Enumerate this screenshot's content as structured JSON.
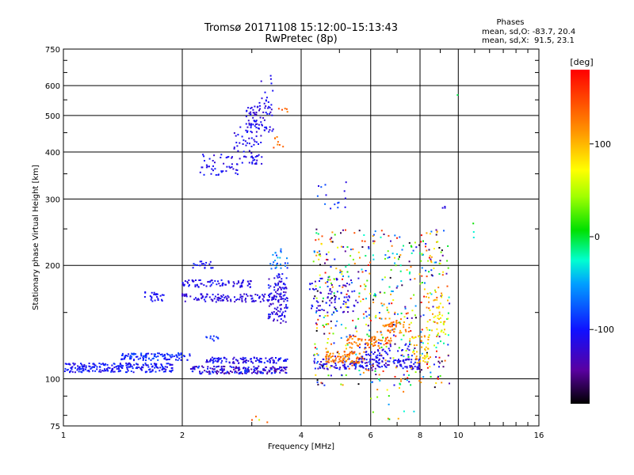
{
  "chart_data": {
    "type": "scatter",
    "title": "Tromsø 20171108 15:12:00–15:13:43",
    "subtitle": "RwPretec (8p)",
    "xlabel": "Frequency [MHz]",
    "ylabel": "Stationary phase Virtual Height [km]",
    "x_scale": "log",
    "y_scale": "log",
    "xlim": [
      1,
      16
    ],
    "ylim": [
      75,
      750
    ],
    "x_ticks": [
      1,
      2,
      4,
      6,
      8,
      10,
      16
    ],
    "x_tick_labels": [
      "1",
      "2",
      "4",
      "6",
      "8",
      "10",
      "16"
    ],
    "y_ticks": [
      75,
      100,
      200,
      300,
      400,
      500,
      600,
      750
    ],
    "y_tick_labels": [
      "75",
      "100",
      "200",
      "300",
      "400",
      "500",
      "600",
      "750"
    ],
    "grid": true,
    "stats": {
      "heading": "Phases",
      "line_o": "mean, sd,O: -83.7, 20.4",
      "line_x": "mean, sd,X:  91.5, 23.1"
    },
    "colorbar": {
      "label": "[deg]",
      "range": [
        -180,
        180
      ],
      "ticks": [
        100,
        0,
        -100
      ],
      "tick_labels": [
        "100",
        "0",
        "-100"
      ]
    },
    "clusters": [
      {
        "xr": [
          1.0,
          1.9
        ],
        "yr": [
          104,
          110
        ],
        "c": [
          -120,
          -85
        ],
        "n": 230
      },
      {
        "xr": [
          1.4,
          2.1
        ],
        "yr": [
          112,
          117
        ],
        "c": [
          -110,
          -75
        ],
        "n": 110
      },
      {
        "xr": [
          1.6,
          1.8
        ],
        "yr": [
          160,
          170
        ],
        "c": [
          -110,
          -100
        ],
        "n": 25
      },
      {
        "xr": [
          2.1,
          3.7
        ],
        "yr": [
          103,
          108
        ],
        "c": [
          -150,
          -80
        ],
        "n": 190
      },
      {
        "xr": [
          2.3,
          3.7
        ],
        "yr": [
          110,
          114
        ],
        "c": [
          -125,
          -85
        ],
        "n": 110
      },
      {
        "xr": [
          2.0,
          3.7
        ],
        "yr": [
          160,
          168
        ],
        "c": [
          -130,
          -100
        ],
        "n": 130
      },
      {
        "xr": [
          2.0,
          3.0
        ],
        "yr": [
          175,
          183
        ],
        "c": [
          -125,
          -95
        ],
        "n": 80
      },
      {
        "xr": [
          2.1,
          2.4
        ],
        "yr": [
          195,
          205
        ],
        "c": [
          -110,
          -90
        ],
        "n": 18
      },
      {
        "xr": [
          2.3,
          2.5
        ],
        "yr": [
          126,
          130
        ],
        "c": [
          -95,
          -80
        ],
        "n": 10
      },
      {
        "xr": [
          2.2,
          2.8
        ],
        "yr": [
          345,
          395
        ],
        "c": [
          -125,
          -95
        ],
        "n": 45
      },
      {
        "xr": [
          2.7,
          3.2
        ],
        "yr": [
          370,
          470
        ],
        "c": [
          -125,
          -95
        ],
        "n": 60
      },
      {
        "xr": [
          2.9,
          3.4
        ],
        "yr": [
          450,
          540
        ],
        "c": [
          -130,
          -95
        ],
        "n": 80
      },
      {
        "xr": [
          3.1,
          3.4
        ],
        "yr": [
          540,
          650
        ],
        "c": [
          -120,
          -100
        ],
        "n": 12
      },
      {
        "xr": [
          3.3,
          3.7
        ],
        "yr": [
          140,
          190
        ],
        "c": [
          -135,
          -90
        ],
        "n": 100
      },
      {
        "xr": [
          3.3,
          3.7
        ],
        "yr": [
          195,
          225
        ],
        "c": [
          -95,
          -40
        ],
        "n": 25
      },
      {
        "xr": [
          3.4,
          3.6
        ],
        "yr": [
          410,
          440
        ],
        "c": [
          120,
          150
        ],
        "n": 8
      },
      {
        "xr": [
          3.5,
          3.7
        ],
        "yr": [
          490,
          540
        ],
        "c": [
          120,
          150
        ],
        "n": 5
      },
      {
        "xr": [
          4.3,
          8.0
        ],
        "yr": [
          106,
          113
        ],
        "c": [
          -140,
          -85
        ],
        "n": 160
      },
      {
        "xr": [
          4.3,
          9.5
        ],
        "yr": [
          95,
          250
        ],
        "c": [
          -180,
          180
        ],
        "n": 550
      },
      {
        "xr": [
          4.6,
          5.8
        ],
        "yr": [
          110,
          118
        ],
        "c": [
          110,
          150
        ],
        "n": 80
      },
      {
        "xr": [
          5.2,
          6.8
        ],
        "yr": [
          120,
          130
        ],
        "c": [
          110,
          150
        ],
        "n": 70
      },
      {
        "xr": [
          6.3,
          7.6
        ],
        "yr": [
          132,
          145
        ],
        "c": [
          100,
          150
        ],
        "n": 50
      },
      {
        "xr": [
          7.5,
          8.5
        ],
        "yr": [
          110,
          130
        ],
        "c": [
          60,
          130
        ],
        "n": 45
      },
      {
        "xr": [
          8.3,
          9.3
        ],
        "yr": [
          130,
          170
        ],
        "c": [
          40,
          120
        ],
        "n": 45
      },
      {
        "xr": [
          4.2,
          5.6
        ],
        "yr": [
          150,
          185
        ],
        "c": [
          -140,
          -90
        ],
        "n": 80
      },
      {
        "xr": [
          5.6,
          7.6
        ],
        "yr": [
          110,
          125
        ],
        "c": [
          -130,
          -90
        ],
        "n": 60
      },
      {
        "xr": [
          4.4,
          5.2
        ],
        "yr": [
          255,
          335
        ],
        "c": [
          -120,
          -70
        ],
        "n": 15
      },
      {
        "xr": [
          6.0,
          7.8
        ],
        "yr": [
          76,
          95
        ],
        "c": [
          -60,
          130
        ],
        "n": 14
      },
      {
        "xr": [
          9.1,
          9.3
        ],
        "yr": [
          280,
          290
        ],
        "c": [
          -120,
          -110
        ],
        "n": 3
      },
      {
        "xr": [
          10.7,
          11.0
        ],
        "yr": [
          225,
          260
        ],
        "c": [
          -120,
          165
        ],
        "n": 3
      },
      {
        "xr": [
          9.9,
          10.0
        ],
        "yr": [
          565,
          570
        ],
        "c": [
          -10,
          0
        ],
        "n": 1
      },
      {
        "xr": [
          3.0,
          3.4
        ],
        "yr": [
          76,
          80
        ],
        "c": [
          60,
          160
        ],
        "n": 4
      }
    ]
  }
}
